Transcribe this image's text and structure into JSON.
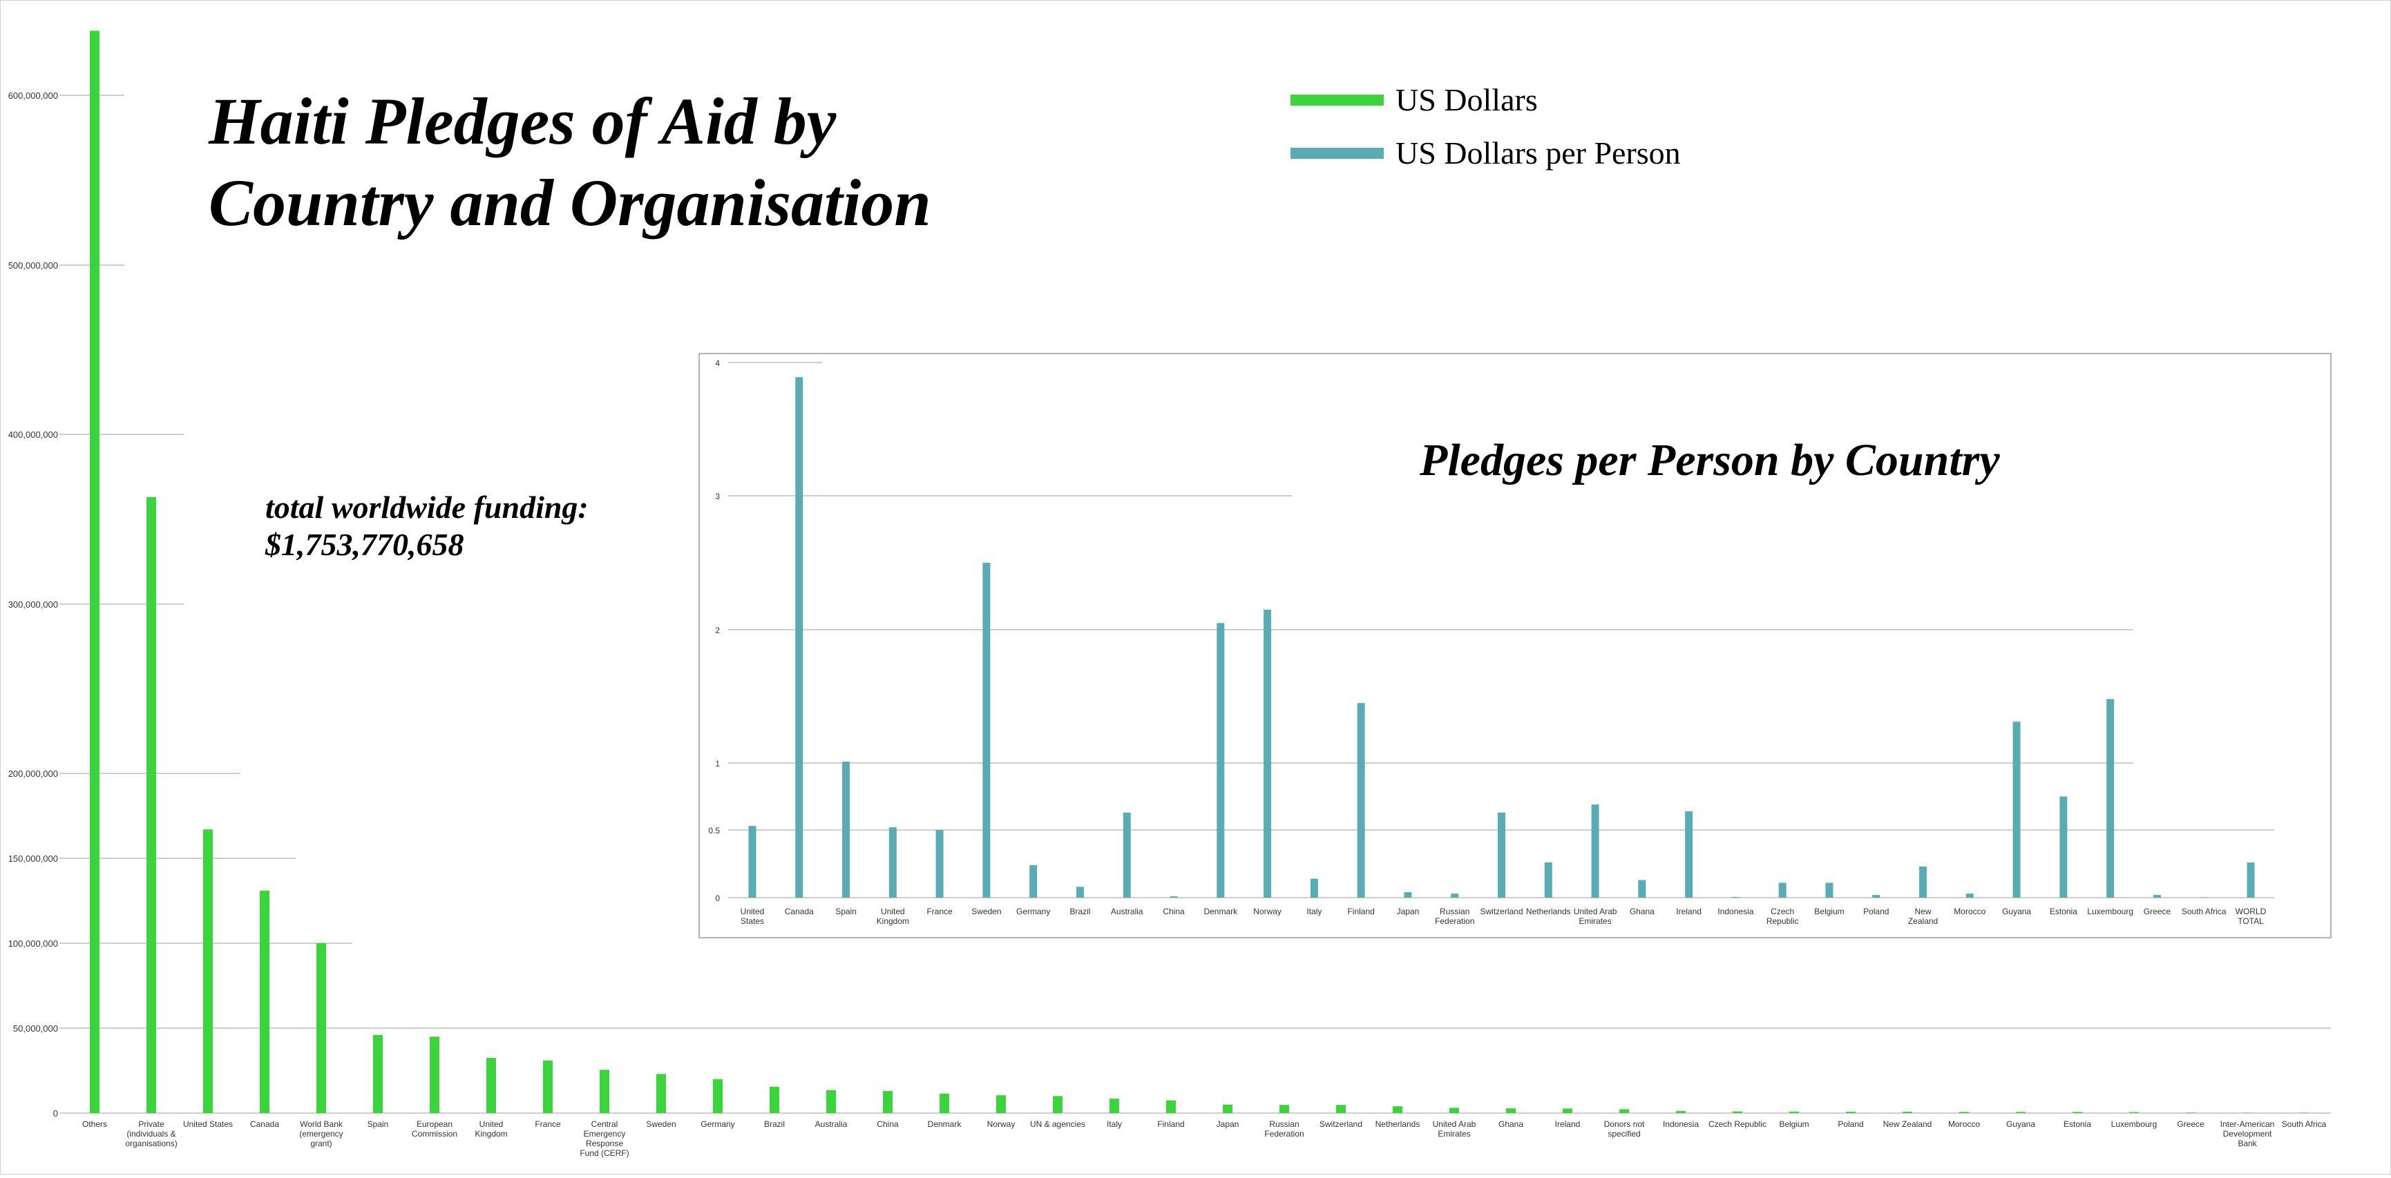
{
  "chart_data": [
    {
      "type": "bar",
      "title_lines": [
        "Haiti Pledges of Aid by",
        "Country and Organisation"
      ],
      "annotation_lines": [
        "total worldwide funding:",
        "$1,753,770,658"
      ],
      "ylim": [
        0,
        640000000
      ],
      "yticks": [
        0,
        50000000,
        100000000,
        150000000,
        200000000,
        300000000,
        400000000,
        500000000,
        600000000
      ],
      "ytick_labels": [
        "0",
        "50,000,000",
        "100,000,000",
        "150,000,000",
        "200,000,000",
        "300,000,000",
        "400,000,000",
        "500,000,000",
        "600,000,000"
      ],
      "y_scale": "piecewise-linear (lower 0–200M band expanded)",
      "bar_color": "#3cd43c",
      "categories": [
        [
          "Others"
        ],
        [
          "Private",
          "(individuals &",
          "organisations)"
        ],
        [
          "United States"
        ],
        [
          "Canada"
        ],
        [
          "World Bank",
          "(emergency",
          "grant)"
        ],
        [
          "Spain"
        ],
        [
          "European",
          "Commission"
        ],
        [
          "United",
          "Kingdom"
        ],
        [
          "France"
        ],
        [
          "Central",
          "Emergency",
          "Response",
          "Fund (CERF)"
        ],
        [
          "Sweden"
        ],
        [
          "Germany"
        ],
        [
          "Brazil"
        ],
        [
          "Australia"
        ],
        [
          "China"
        ],
        [
          "Denmark"
        ],
        [
          "Norway"
        ],
        [
          "UN & agencies"
        ],
        [
          "Italy"
        ],
        [
          "Finland"
        ],
        [
          "Japan"
        ],
        [
          "Russian",
          "Federation"
        ],
        [
          "Switzerland"
        ],
        [
          "Netherlands"
        ],
        [
          "United Arab",
          "Emirates"
        ],
        [
          "Ghana"
        ],
        [
          "Ireland"
        ],
        [
          "Donors not",
          "specified"
        ],
        [
          "Indonesia"
        ],
        [
          "Czech Republic"
        ],
        [
          "Belgium"
        ],
        [
          "Poland"
        ],
        [
          "New Zealand"
        ],
        [
          "Morocco"
        ],
        [
          "Guyana"
        ],
        [
          "Estonia"
        ],
        [
          "Luxembourg"
        ],
        [
          "Greece"
        ],
        [
          "Inter-American",
          "Development",
          "Bank"
        ],
        [
          "South Africa"
        ]
      ],
      "series": [
        {
          "name": "US Dollars",
          "values": [
            638000000,
            363000000,
            167000000,
            131000000,
            100000000,
            46000000,
            45000000,
            32500000,
            31000000,
            25500000,
            23000000,
            20000000,
            15500000,
            13500000,
            13000000,
            11500000,
            10500000,
            10000000,
            8500000,
            7500000,
            5000000,
            4800000,
            4800000,
            4000000,
            3100000,
            2800000,
            2700000,
            2300000,
            1200000,
            1000000,
            900000,
            800000,
            800000,
            700000,
            700000,
            700000,
            600000,
            300000,
            100000,
            50000
          ]
        }
      ]
    },
    {
      "type": "bar",
      "title": "Pledges per Person by Country",
      "ylim": [
        0,
        4
      ],
      "yticks": [
        0,
        0.5,
        1,
        2,
        3,
        4
      ],
      "ytick_labels": [
        "0",
        "0.5",
        "1",
        "2",
        "3",
        "4"
      ],
      "y_scale": "piecewise-linear (0–1 band expanded)",
      "bar_color": "#5aacb4",
      "categories": [
        [
          "United",
          "States"
        ],
        [
          "Canada"
        ],
        [
          "Spain"
        ],
        [
          "United",
          "Kingdom"
        ],
        [
          "France"
        ],
        [
          "Sweden"
        ],
        [
          "Germany"
        ],
        [
          "Brazil"
        ],
        [
          "Australia"
        ],
        [
          "China"
        ],
        [
          "Denmark"
        ],
        [
          "Norway"
        ],
        [
          "Italy"
        ],
        [
          "Finland"
        ],
        [
          "Japan"
        ],
        [
          "Russian",
          "Federation"
        ],
        [
          "Switzerland"
        ],
        [
          "Netherlands"
        ],
        [
          "United Arab",
          "Emirates"
        ],
        [
          "Ghana"
        ],
        [
          "Ireland"
        ],
        [
          "Indonesia"
        ],
        [
          "Czech",
          "Republic"
        ],
        [
          "Belgium"
        ],
        [
          "Poland"
        ],
        [
          "New",
          "Zealand"
        ],
        [
          "Morocco"
        ],
        [
          "Guyana"
        ],
        [
          "Estonia"
        ],
        [
          "Luxembourg"
        ],
        [
          "Greece"
        ],
        [
          "South Africa"
        ],
        [
          "WORLD",
          "TOTAL"
        ]
      ],
      "series": [
        {
          "name": "US Dollars per Person",
          "values": [
            0.53,
            3.89,
            1.01,
            0.52,
            0.5,
            2.5,
            0.24,
            0.08,
            0.63,
            0.01,
            2.05,
            2.15,
            0.14,
            1.45,
            0.04,
            0.03,
            0.63,
            0.26,
            0.69,
            0.13,
            0.64,
            0.005,
            0.11,
            0.11,
            0.02,
            0.23,
            0.03,
            1.31,
            0.75,
            1.48,
            0.02,
            0.002,
            0.26
          ]
        }
      ]
    }
  ],
  "legend": [
    {
      "label": "US Dollars",
      "color": "#3cd43c"
    },
    {
      "label": "US Dollars per Person",
      "color": "#5aacb4"
    }
  ]
}
